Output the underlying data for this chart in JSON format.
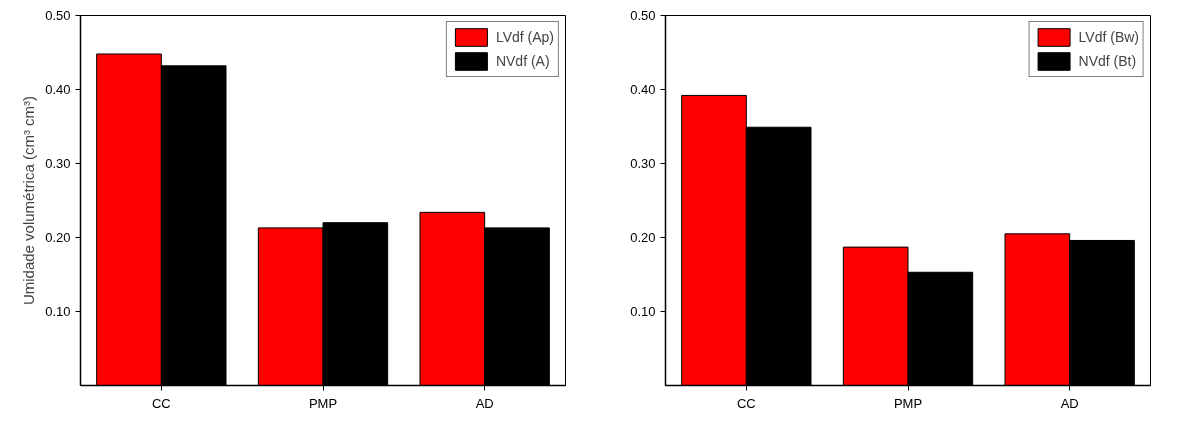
{
  "chart_data": [
    {
      "type": "bar",
      "ylabel": "Umidade volumétrica (cm³ cm³)",
      "categories": [
        "CC",
        "PMP",
        "AD"
      ],
      "ylim": [
        0,
        0.5
      ],
      "yticks": [
        {
          "value": 0.1,
          "label": "0.10"
        },
        {
          "value": 0.2,
          "label": "0.20"
        },
        {
          "value": 0.3,
          "label": "0.30"
        },
        {
          "value": 0.4,
          "label": "0.40"
        },
        {
          "value": 0.5,
          "label": "0.50"
        }
      ],
      "legend": "top right",
      "grid": false,
      "series": [
        {
          "name": "LVdf (Ap)",
          "color": "#ff0000",
          "values": [
            0.448,
            0.213,
            0.234
          ]
        },
        {
          "name": "NVdf (A)",
          "color": "#000000",
          "values": [
            0.432,
            0.22,
            0.213
          ]
        }
      ]
    },
    {
      "type": "bar",
      "categories": [
        "CC",
        "PMP",
        "AD"
      ],
      "ylim": [
        0,
        0.5
      ],
      "yticks": [
        {
          "value": 0.1,
          "label": "0.10"
        },
        {
          "value": 0.2,
          "label": "0.20"
        },
        {
          "value": 0.3,
          "label": "0.30"
        },
        {
          "value": 0.4,
          "label": "0.40"
        },
        {
          "value": 0.5,
          "label": "0.50"
        }
      ],
      "legend": "top right",
      "grid": false,
      "series": [
        {
          "name": "LVdf (Bw)",
          "color": "#ff0000",
          "values": [
            0.392,
            0.187,
            0.205
          ]
        },
        {
          "name": "NVdf (Bt)",
          "color": "#000000",
          "values": [
            0.349,
            0.153,
            0.196
          ]
        }
      ]
    }
  ]
}
